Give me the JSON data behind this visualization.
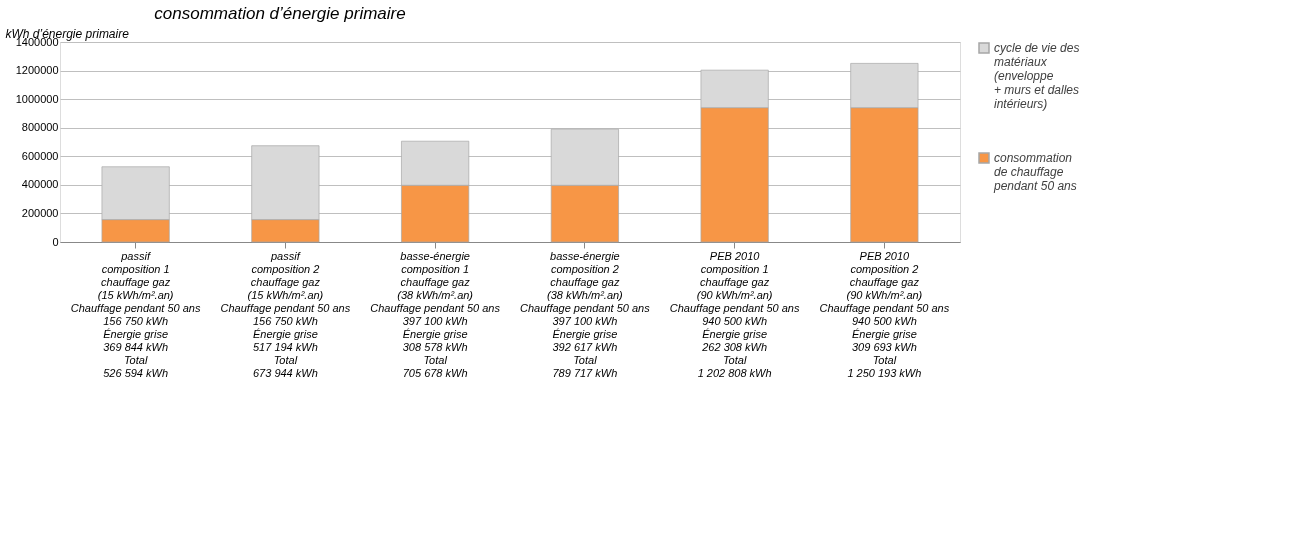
{
  "chart_data": {
    "type": "bar",
    "title": "consommation d’énergie primaire",
    "ylabel": "kWh d’énergie primaire",
    "categories": [
      "passif\ncomposition 1\nchauffage gaz\n(15 kWh/m².an)\nChauffage pendant 50 ans\n156 750 kWh\nÉnergie grise\n369 844 kWh\nTotal\n526 594 kWh",
      "passif\ncomposition 2\nchauffage gaz\n(15 kWh/m².an)\nChauffage pendant 50 ans\n156 750 kWh\nÉnergie grise\n517 194 kWh\nTotal\n673 944 kWh",
      "basse-énergie\ncomposition 1\nchauffage gaz\n(38 kWh/m².an)\nChauffage pendant 50 ans\n397 100 kWh\nÉnergie grise\n308 578 kWh\nTotal\n705 678 kWh",
      "basse-énergie\ncomposition 2\nchauffage gaz\n(38 kWh/m².an)\nChauffage pendant 50 ans\n397 100 kWh\nÉnergie grise\n392 617 kWh\nTotal\n789 717 kWh",
      "PEB 2010\ncomposition 1\nchauffage gaz\n(90 kWh/m².an)\nChauffage pendant 50 ans\n940 500 kWh\nÉnergie grise\n262 308 kWh\nTotal\n1 202 808 kWh",
      "PEB 2010\ncomposition 2\nchauffage gaz\n(90 kWh/m².an)\nChauffage pendant 50 ans\n940 500 kWh\nÉnergie grise\n309 693 kWh\nTotal\n1 250 193 kWh"
    ],
    "stacked": true,
    "series": [
      {
        "name": "consommation\nde chauffage\npendant 50 ans",
        "color": "#f79646",
        "values": [
          156750,
          156750,
          397100,
          397100,
          940500,
          940500
        ]
      },
      {
        "name": "cycle de vie des\nmatériaux\n(enveloppe\n+ murs et dalles\nintérieurs)",
        "color": "#d9d9d9",
        "values": [
          369844,
          517194,
          308578,
          392617,
          262308,
          309693
        ]
      }
    ],
    "ylim": [
      0,
      1400000
    ],
    "yticks": [
      0,
      200000,
      400000,
      600000,
      800000,
      1000000,
      1200000,
      1400000
    ],
    "grid": "y",
    "legend": "right"
  }
}
